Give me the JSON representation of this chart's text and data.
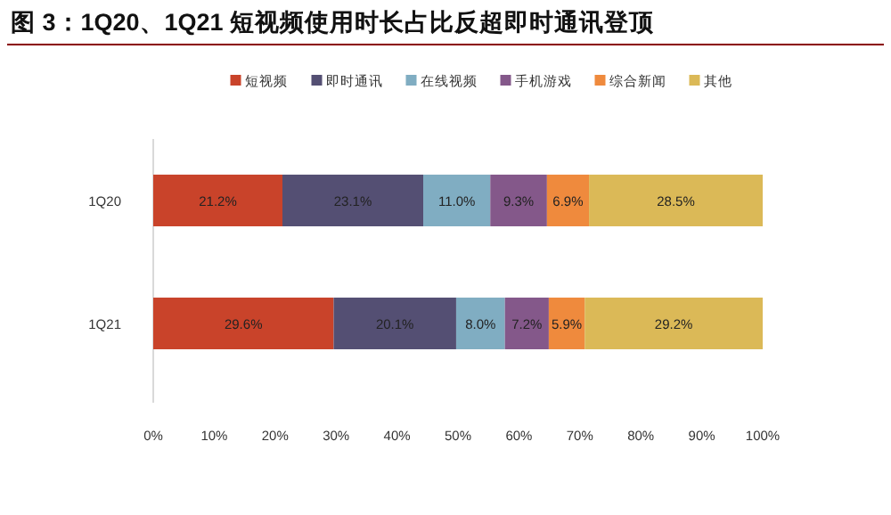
{
  "chart_data": {
    "type": "bar",
    "orientation": "horizontal",
    "stacked": true,
    "title": "图 3：1Q20、1Q21 短视频使用时长占比反超即时通讯登顶",
    "categories": [
      "1Q20",
      "1Q21"
    ],
    "series": [
      {
        "name": "短视频",
        "color": "#c9432a",
        "values": [
          21.2,
          29.6
        ],
        "value_labels": [
          "21.2%",
          "29.6%"
        ]
      },
      {
        "name": "即时通讯",
        "color": "#544f73",
        "values": [
          23.1,
          20.1
        ],
        "value_labels": [
          "23.1%",
          "20.1%"
        ]
      },
      {
        "name": "在线视频",
        "color": "#80adc2",
        "values": [
          11.0,
          8.0
        ],
        "value_labels": [
          "11.0%",
          "8.0%"
        ]
      },
      {
        "name": "手机游戏",
        "color": "#84588a",
        "values": [
          9.3,
          7.2
        ],
        "value_labels": [
          "9.3%",
          "7.2%"
        ]
      },
      {
        "name": "综合新闻",
        "color": "#ef8a3d",
        "values": [
          6.9,
          5.9
        ],
        "value_labels": [
          "6.9%",
          "5.9%"
        ]
      },
      {
        "name": "其他",
        "color": "#dbb957",
        "values": [
          28.5,
          29.2
        ],
        "value_labels": [
          "28.5%",
          "29.2%"
        ]
      }
    ],
    "xlim": [
      0,
      100
    ],
    "xticks": [
      {
        "value": 0,
        "label": "0%"
      },
      {
        "value": 10,
        "label": "10%"
      },
      {
        "value": 20,
        "label": "20%"
      },
      {
        "value": 30,
        "label": "30%"
      },
      {
        "value": 40,
        "label": "40%"
      },
      {
        "value": 50,
        "label": "50%"
      },
      {
        "value": 60,
        "label": "60%"
      },
      {
        "value": 70,
        "label": "70%"
      },
      {
        "value": 80,
        "label": "80%"
      },
      {
        "value": 90,
        "label": "90%"
      },
      {
        "value": 100,
        "label": "100%"
      }
    ],
    "grid": false,
    "legend": "top"
  }
}
